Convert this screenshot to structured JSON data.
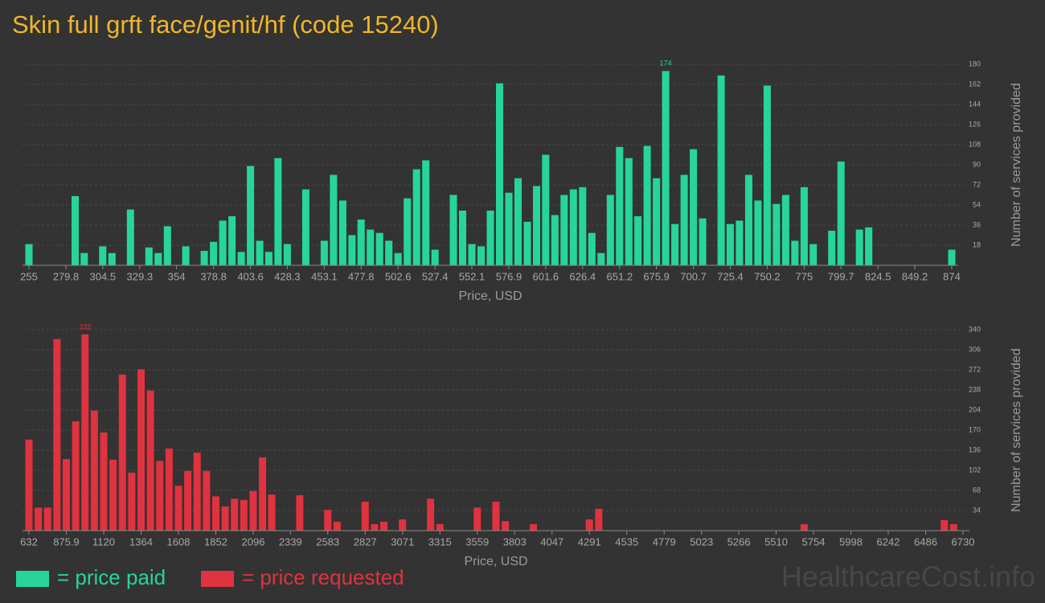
{
  "title": "Skin full grft face/genit/hf (code 15240)",
  "watermark": "HealthcareCost.info",
  "chart_data": [
    {
      "type": "bar",
      "name": "= price paid",
      "color": "#27d59b",
      "label_max": true,
      "grid": true,
      "xlabel": "Price, USD",
      "ylabel": "Number of services provided",
      "x": [
        255,
        286.0,
        292.1,
        304.5,
        310.7,
        323.1,
        335.5,
        341.7,
        347.9,
        360.2,
        372.6,
        378.8,
        385.0,
        391.2,
        397.4,
        403.6,
        409.8,
        415.9,
        422.1,
        428.3,
        440.7,
        453.1,
        459.3,
        465.5,
        471.7,
        477.8,
        484.0,
        490.2,
        496.4,
        502.6,
        508.8,
        515.0,
        521.2,
        527.4,
        539.7,
        545.9,
        552.1,
        558.3,
        564.5,
        570.7,
        576.9,
        583.1,
        589.3,
        595.5,
        601.6,
        607.8,
        614.0,
        620.2,
        626.4,
        632.6,
        638.8,
        645.0,
        651.2,
        657.4,
        663.5,
        669.7,
        675.9,
        682.1,
        688.3,
        694.5,
        700.7,
        706.9,
        719.3,
        725.4,
        731.6,
        737.8,
        744.0,
        750.2,
        756.4,
        762.6,
        768.8,
        775.0,
        781.1,
        793.5,
        799.7,
        812.1,
        818.3,
        874
      ],
      "values": [
        19,
        62,
        11,
        17,
        11,
        50,
        16,
        11,
        35,
        17,
        13,
        21,
        40,
        44,
        12,
        89,
        22,
        12,
        96,
        19,
        68,
        22,
        81,
        58,
        27,
        41,
        32,
        29,
        22,
        11,
        60,
        86,
        94,
        14,
        63,
        49,
        19,
        17,
        49,
        163,
        65,
        78,
        39,
        71,
        99,
        45,
        63,
        68,
        70,
        29,
        11,
        63,
        106,
        96,
        44,
        107,
        78,
        174,
        37,
        81,
        104,
        42,
        170,
        37,
        40,
        81,
        58,
        161,
        55,
        63,
        22,
        70,
        19,
        31,
        93,
        32,
        34,
        14
      ],
      "xlim": [
        255,
        874
      ],
      "xticks": [
        255,
        279.8,
        304.5,
        329.3,
        354,
        378.8,
        403.6,
        428.3,
        453.1,
        477.8,
        502.6,
        527.4,
        552.1,
        576.9,
        601.6,
        626.4,
        651.2,
        675.9,
        700.7,
        725.4,
        750.2,
        775,
        799.7,
        824.5,
        849.2,
        874
      ],
      "ylim": [
        0,
        180
      ],
      "yticks": [
        18,
        36,
        54,
        72,
        90,
        108,
        126,
        144,
        162,
        180
      ]
    },
    {
      "type": "bar",
      "name": "= price requested",
      "color": "#e0323f",
      "label_max": true,
      "grid": true,
      "xlabel": "Price, USD",
      "ylabel": "Number of services provided",
      "x": [
        632,
        693,
        754,
        815,
        876,
        937,
        998,
        1059,
        1120,
        1181,
        1242,
        1303,
        1364,
        1425,
        1486,
        1547,
        1608,
        1669,
        1730,
        1791,
        1852,
        1913,
        1974,
        2035,
        2096,
        2157,
        2217,
        2400,
        2583,
        2644,
        2827,
        2888,
        2949,
        3071,
        3254,
        3315,
        3559,
        3681,
        3742,
        3925,
        4291,
        4352,
        5693,
        6608,
        6669
      ],
      "values": [
        154,
        39,
        39,
        324,
        121,
        185,
        332,
        203,
        166,
        120,
        264,
        98,
        273,
        237,
        118,
        139,
        76,
        101,
        132,
        101,
        58,
        41,
        54,
        52,
        67,
        124,
        61,
        60,
        35,
        15,
        49,
        11,
        15,
        19,
        54,
        11,
        39,
        49,
        16,
        11,
        19,
        37,
        11,
        18,
        11
      ],
      "xlim": [
        632,
        6730
      ],
      "xticks": [
        632,
        875.9,
        1120,
        1364,
        1608,
        1852,
        2096,
        2339,
        2583,
        2827,
        3071,
        3315,
        3559,
        3803,
        4047,
        4291,
        4535,
        4779,
        5023,
        5266,
        5510,
        5754,
        5998,
        6242,
        6486,
        6730
      ],
      "ylim": [
        0,
        340
      ],
      "yticks": [
        34,
        68,
        102,
        136,
        170,
        204,
        238,
        272,
        306,
        340
      ]
    }
  ]
}
